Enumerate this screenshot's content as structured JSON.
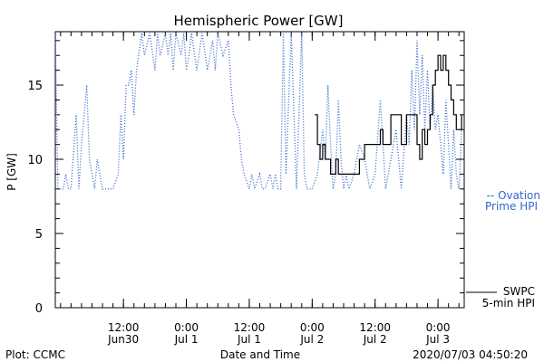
{
  "chart_data": {
    "type": "line",
    "title": "Hemispheric Power [GW]",
    "ylabel": "P [GW]",
    "xlabel": "Date and Time",
    "ylim": [
      0,
      18.6
    ],
    "yticks": [
      0,
      5,
      10,
      15
    ],
    "xlim": [
      "2020-06-29T23:00",
      "2020-07-03T05:00"
    ],
    "xticks": [
      {
        "t": "2020-06-30T12:00",
        "line1": "12:00",
        "line2": "Jun30"
      },
      {
        "t": "2020-07-01T00:00",
        "line1": "0:00",
        "line2": "Jul 1"
      },
      {
        "t": "2020-07-01T12:00",
        "line1": "12:00",
        "line2": "Jul 1"
      },
      {
        "t": "2020-07-02T00:00",
        "line1": "0:00",
        "line2": "Jul 2"
      },
      {
        "t": "2020-07-02T12:00",
        "line1": "12:00",
        "line2": "Jul 2"
      },
      {
        "t": "2020-07-03T00:00",
        "line1": "0:00",
        "line2": "Jul 3"
      }
    ],
    "series": [
      {
        "name": "Ovation Prime HPI",
        "legend": [
          "-- Ovation",
          "Prime HPI"
        ],
        "color": "#3366cc",
        "style": "dotted",
        "points": [
          [
            "2020-06-29T23:00",
            18.5
          ],
          [
            "2020-06-29T23:30",
            8
          ],
          [
            "2020-06-30T00:30",
            8
          ],
          [
            "2020-06-30T01:00",
            9
          ],
          [
            "2020-06-30T01:30",
            8
          ],
          [
            "2020-06-30T02:00",
            8
          ],
          [
            "2020-06-30T03:00",
            13
          ],
          [
            "2020-06-30T03:30",
            8
          ],
          [
            "2020-06-30T04:00",
            11
          ],
          [
            "2020-06-30T05:00",
            15
          ],
          [
            "2020-06-30T05:30",
            10
          ],
          [
            "2020-06-30T06:00",
            9
          ],
          [
            "2020-06-30T06:30",
            8
          ],
          [
            "2020-06-30T07:00",
            10
          ],
          [
            "2020-06-30T07:30",
            9
          ],
          [
            "2020-06-30T08:00",
            8
          ],
          [
            "2020-06-30T09:00",
            8
          ],
          [
            "2020-06-30T10:00",
            8
          ],
          [
            "2020-06-30T11:00",
            9
          ],
          [
            "2020-06-30T11:30",
            13
          ],
          [
            "2020-06-30T12:00",
            10
          ],
          [
            "2020-06-30T12:30",
            15
          ],
          [
            "2020-06-30T13:00",
            15
          ],
          [
            "2020-06-30T13:30",
            16
          ],
          [
            "2020-06-30T14:00",
            13
          ],
          [
            "2020-06-30T14:30",
            16
          ],
          [
            "2020-06-30T15:30",
            18.5
          ],
          [
            "2020-06-30T16:00",
            17
          ],
          [
            "2020-06-30T17:00",
            18.5
          ],
          [
            "2020-06-30T18:00",
            16
          ],
          [
            "2020-06-30T18:30",
            18.5
          ],
          [
            "2020-06-30T19:00",
            17
          ],
          [
            "2020-06-30T20:00",
            18.5
          ],
          [
            "2020-06-30T20:30",
            17
          ],
          [
            "2020-06-30T21:00",
            18.5
          ],
          [
            "2020-06-30T21:30",
            16
          ],
          [
            "2020-06-30T22:00",
            18.5
          ],
          [
            "2020-06-30T23:00",
            17
          ],
          [
            "2020-06-30T23:30",
            18.5
          ],
          [
            "2020-07-01T00:00",
            16
          ],
          [
            "2020-07-01T00:30",
            17
          ],
          [
            "2020-07-01T01:00",
            18.5
          ],
          [
            "2020-07-01T02:00",
            16
          ],
          [
            "2020-07-01T03:00",
            18.5
          ],
          [
            "2020-07-01T04:00",
            16
          ],
          [
            "2020-07-01T05:00",
            18
          ],
          [
            "2020-07-01T05:30",
            16
          ],
          [
            "2020-07-01T06:00",
            18.5
          ],
          [
            "2020-07-01T07:00",
            17
          ],
          [
            "2020-07-01T08:00",
            18
          ],
          [
            "2020-07-01T08:30",
            15
          ],
          [
            "2020-07-01T09:00",
            13
          ],
          [
            "2020-07-01T10:00",
            12
          ],
          [
            "2020-07-01T10:30",
            10
          ],
          [
            "2020-07-01T11:00",
            9
          ],
          [
            "2020-07-01T12:00",
            8
          ],
          [
            "2020-07-01T12:30",
            9
          ],
          [
            "2020-07-01T13:00",
            8
          ],
          [
            "2020-07-01T14:00",
            9
          ],
          [
            "2020-07-01T14:30",
            8
          ],
          [
            "2020-07-01T15:00",
            8
          ],
          [
            "2020-07-01T16:00",
            9
          ],
          [
            "2020-07-01T16:30",
            8
          ],
          [
            "2020-07-01T17:00",
            9
          ],
          [
            "2020-07-01T17:30",
            8
          ],
          [
            "2020-07-01T18:00",
            8
          ],
          [
            "2020-07-01T18:30",
            18.5
          ],
          [
            "2020-07-01T19:00",
            9
          ],
          [
            "2020-07-01T20:00",
            18.5
          ],
          [
            "2020-07-01T21:00",
            8
          ],
          [
            "2020-07-01T22:00",
            18.5
          ],
          [
            "2020-07-01T22:30",
            9
          ],
          [
            "2020-07-01T23:00",
            8
          ],
          [
            "2020-07-02T00:00",
            8
          ],
          [
            "2020-07-02T01:00",
            9
          ],
          [
            "2020-07-02T02:00",
            12
          ],
          [
            "2020-07-02T02:30",
            10
          ],
          [
            "2020-07-02T03:00",
            15
          ],
          [
            "2020-07-02T03:30",
            11
          ],
          [
            "2020-07-02T04:00",
            8
          ],
          [
            "2020-07-02T04:30",
            9
          ],
          [
            "2020-07-02T05:00",
            14
          ],
          [
            "2020-07-02T05:30",
            10
          ],
          [
            "2020-07-02T06:00",
            8
          ],
          [
            "2020-07-02T06:30",
            9
          ],
          [
            "2020-07-02T07:00",
            8
          ],
          [
            "2020-07-02T08:00",
            9
          ],
          [
            "2020-07-02T09:00",
            11
          ],
          [
            "2020-07-02T10:00",
            10
          ],
          [
            "2020-07-02T11:00",
            8
          ],
          [
            "2020-07-02T12:00",
            9
          ],
          [
            "2020-07-02T13:00",
            14
          ],
          [
            "2020-07-02T13:30",
            11
          ],
          [
            "2020-07-02T14:00",
            8
          ],
          [
            "2020-07-02T15:00",
            10
          ],
          [
            "2020-07-02T16:00",
            12
          ],
          [
            "2020-07-02T17:00",
            8
          ],
          [
            "2020-07-02T18:00",
            13
          ],
          [
            "2020-07-02T18:30",
            11
          ],
          [
            "2020-07-02T19:00",
            16
          ],
          [
            "2020-07-02T19:30",
            12
          ],
          [
            "2020-07-02T20:00",
            18
          ],
          [
            "2020-07-02T20:30",
            13
          ],
          [
            "2020-07-02T21:00",
            17
          ],
          [
            "2020-07-02T21:30",
            12
          ],
          [
            "2020-07-02T22:00",
            16
          ],
          [
            "2020-07-02T22:30",
            12
          ],
          [
            "2020-07-02T23:00",
            15
          ],
          [
            "2020-07-02T23:30",
            12
          ],
          [
            "2020-07-03T00:00",
            13
          ],
          [
            "2020-07-03T01:00",
            9
          ],
          [
            "2020-07-03T01:30",
            14
          ],
          [
            "2020-07-03T02:00",
            11
          ],
          [
            "2020-07-03T02:30",
            8
          ],
          [
            "2020-07-03T03:00",
            12
          ],
          [
            "2020-07-03T03:30",
            9
          ],
          [
            "2020-07-03T04:00",
            8
          ],
          [
            "2020-07-03T04:30",
            12
          ]
        ]
      },
      {
        "name": "SWPC 5-min HPI",
        "legend": [
          "SWPC",
          "5-min HPI"
        ],
        "color": "#000000",
        "style": "step",
        "points": [
          [
            "2020-07-02T00:30",
            13
          ],
          [
            "2020-07-02T01:00",
            11
          ],
          [
            "2020-07-02T01:30",
            10
          ],
          [
            "2020-07-02T02:00",
            11
          ],
          [
            "2020-07-02T02:30",
            10
          ],
          [
            "2020-07-02T03:00",
            10
          ],
          [
            "2020-07-02T03:30",
            9
          ],
          [
            "2020-07-02T04:30",
            10
          ],
          [
            "2020-07-02T05:00",
            9
          ],
          [
            "2020-07-02T06:00",
            9
          ],
          [
            "2020-07-02T07:00",
            9
          ],
          [
            "2020-07-02T08:00",
            9
          ],
          [
            "2020-07-02T09:00",
            10
          ],
          [
            "2020-07-02T10:00",
            11
          ],
          [
            "2020-07-02T11:00",
            11
          ],
          [
            "2020-07-02T12:00",
            11
          ],
          [
            "2020-07-02T13:00",
            12
          ],
          [
            "2020-07-02T13:30",
            11
          ],
          [
            "2020-07-02T14:00",
            11
          ],
          [
            "2020-07-02T15:00",
            13
          ],
          [
            "2020-07-02T16:00",
            13
          ],
          [
            "2020-07-02T17:00",
            11
          ],
          [
            "2020-07-02T18:00",
            13
          ],
          [
            "2020-07-02T19:00",
            13
          ],
          [
            "2020-07-02T20:00",
            11
          ],
          [
            "2020-07-02T20:30",
            10
          ],
          [
            "2020-07-02T21:00",
            12
          ],
          [
            "2020-07-02T21:30",
            11
          ],
          [
            "2020-07-02T22:00",
            12
          ],
          [
            "2020-07-02T22:30",
            13
          ],
          [
            "2020-07-02T23:00",
            15
          ],
          [
            "2020-07-02T23:30",
            16
          ],
          [
            "2020-07-03T00:00",
            17
          ],
          [
            "2020-07-03T00:30",
            16
          ],
          [
            "2020-07-03T01:00",
            17
          ],
          [
            "2020-07-03T01:30",
            16
          ],
          [
            "2020-07-03T02:00",
            15
          ],
          [
            "2020-07-03T02:30",
            14
          ],
          [
            "2020-07-03T03:00",
            13
          ],
          [
            "2020-07-03T03:30",
            12
          ],
          [
            "2020-07-03T04:00",
            12
          ],
          [
            "2020-07-03T04:30",
            13
          ]
        ]
      }
    ]
  },
  "footer": {
    "left": "Plot: CCMC",
    "center": "Date and Time",
    "right": "2020/07/03 04:50:20"
  }
}
